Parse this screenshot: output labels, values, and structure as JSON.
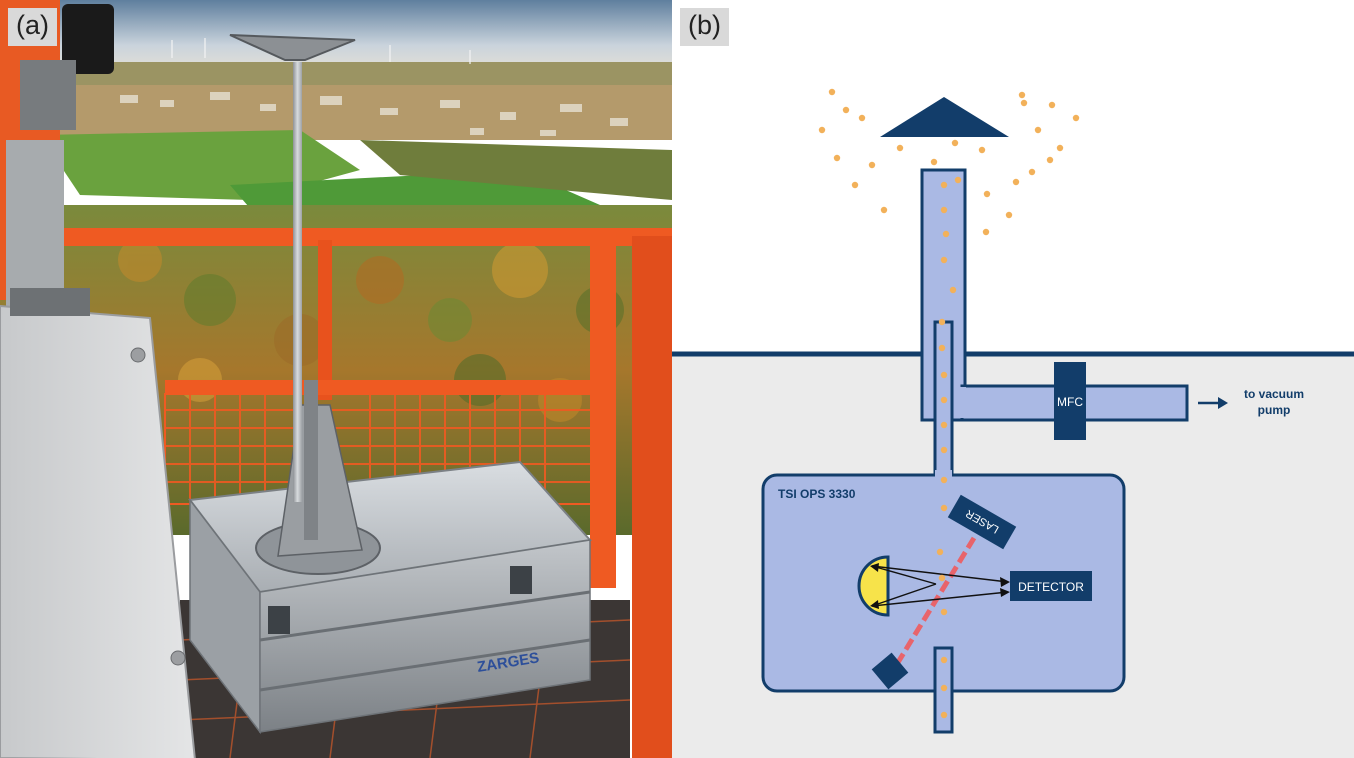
{
  "panel_a": {
    "label": "(a)",
    "logo_text": "ZARGES"
  },
  "panel_b": {
    "label": "(b)",
    "mfc_label": "MFC",
    "vacuum_label_line1": "to vacuum",
    "vacuum_label_line2": "pump",
    "instrument_label": "TSI OPS 3330",
    "laser_label": "LASER",
    "detector_label": "DETECTOR"
  },
  "colors": {
    "navy": "#123d6a",
    "tube_fill": "#aab9e4",
    "indoor_bg": "#ebebeb",
    "particle": "#f2b15a",
    "laser_beam": "#e8646b",
    "mirror": "#f7e34a",
    "railing": "#ef5a22"
  }
}
